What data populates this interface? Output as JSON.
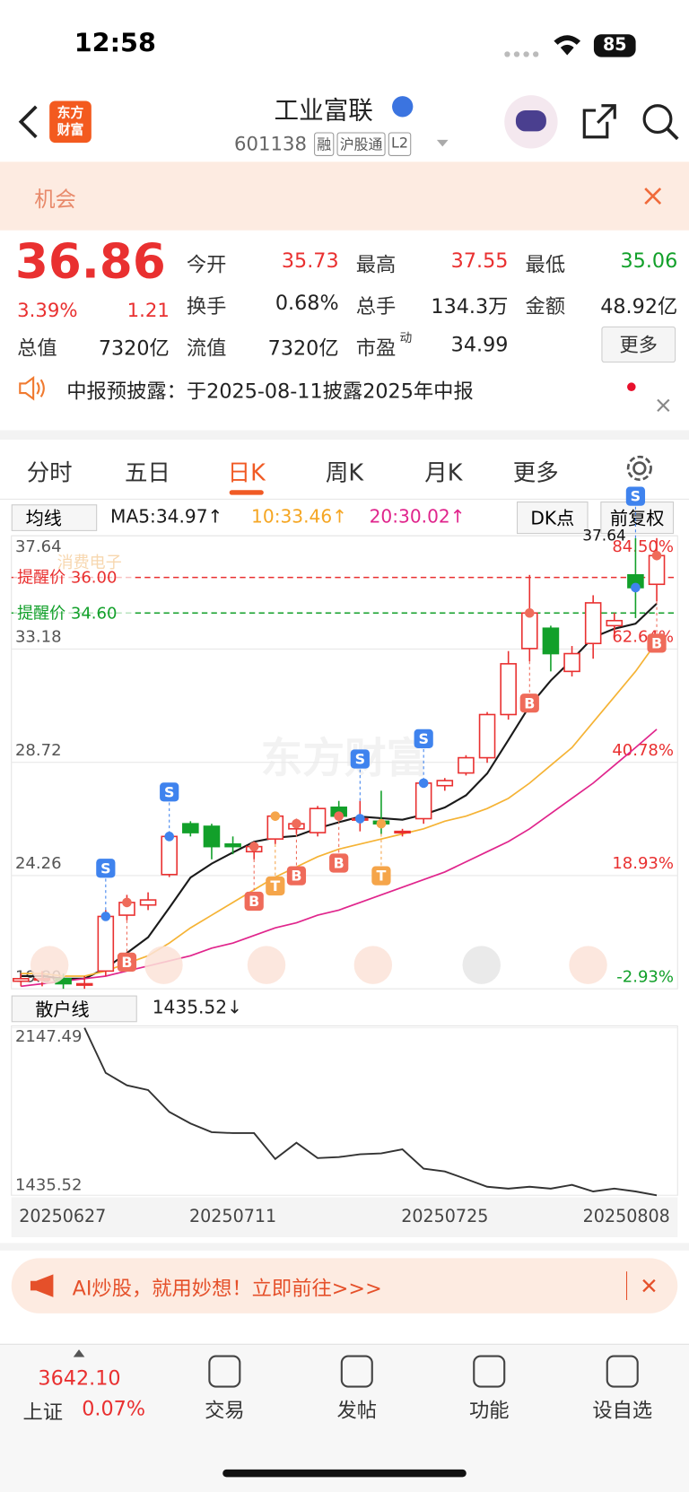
{
  "status": {
    "time": "12:58",
    "battery": "85"
  },
  "header": {
    "logo": [
      "东方",
      "财富"
    ],
    "name": "工业富联",
    "code": "601138",
    "tags": [
      "融",
      "沪股通",
      "L2"
    ]
  },
  "banner": {
    "text": "机会"
  },
  "quote": {
    "price": "36.86",
    "pct": "3.39%",
    "change": "1.21",
    "fields": [
      {
        "label": "今开",
        "value": "35.73"
      },
      {
        "label": "最高",
        "value": "37.55"
      },
      {
        "label": "最低",
        "value": "35.06"
      },
      {
        "label": "换手",
        "value": "0.68%"
      },
      {
        "label": "总手",
        "value": "134.3万"
      },
      {
        "label": "金额",
        "value": "48.92亿"
      },
      {
        "label": "总值",
        "value": "7320亿"
      },
      {
        "label": "流值",
        "value": "7320亿"
      },
      {
        "label": "市盈",
        "sup": "动",
        "value": "34.99"
      }
    ],
    "more": "更多"
  },
  "notice": "中报预披露：于2025-08-11披露2025年中报",
  "tabs": {
    "items": [
      "分时",
      "五日",
      "日K",
      "周K",
      "月K",
      "更多"
    ],
    "active": 2
  },
  "toolbar": {
    "ma": "均线",
    "ma5": "MA5:34.97↑",
    "ma10": "10:33.46↑",
    "ma20": "20:30.02↑",
    "dk": "DK点",
    "adjust": "前复权"
  },
  "chart_data": [
    {
      "type": "candlestick",
      "categories": [
        "20250627",
        null,
        null,
        null,
        null,
        null,
        null,
        null,
        null,
        null,
        "20250711",
        null,
        null,
        null,
        null,
        null,
        null,
        null,
        null,
        null,
        "20250725",
        null,
        null,
        null,
        null,
        null,
        null,
        null,
        null,
        null,
        "20250808"
      ],
      "open": [
        20.1,
        20.2,
        20.2,
        20.0,
        20.5,
        22.7,
        23.1,
        24.3,
        26.3,
        26.2,
        25.5,
        25.2,
        25.7,
        26.1,
        25.95,
        26.95,
        26.5,
        26.4,
        26.0,
        26.5,
        27.8,
        28.3,
        28.9,
        30.6,
        33.2,
        34.0,
        32.3,
        33.4,
        34.1,
        36.1,
        35.73
      ],
      "high": [
        20.4,
        20.5,
        20.4,
        20.3,
        22.9,
        23.5,
        23.6,
        25.9,
        26.4,
        26.3,
        25.8,
        25.6,
        26.7,
        26.5,
        27.0,
        27.2,
        27.2,
        27.6,
        26.1,
        28.0,
        28.1,
        29.0,
        30.7,
        33.1,
        36.1,
        34.1,
        33.3,
        35.3,
        34.6,
        37.55,
        37.55
      ],
      "low": [
        19.9,
        19.9,
        19.8,
        19.8,
        20.3,
        22.5,
        22.9,
        24.2,
        25.8,
        24.9,
        25.1,
        24.9,
        25.5,
        25.9,
        25.8,
        26.4,
        26.0,
        25.9,
        25.8,
        26.3,
        27.6,
        28.2,
        28.7,
        30.4,
        32.7,
        32.3,
        32.1,
        32.8,
        33.6,
        34.4,
        35.06
      ],
      "close": [
        20.2,
        20.2,
        20.0,
        20.0,
        22.65,
        23.2,
        23.3,
        25.8,
        25.95,
        25.4,
        25.4,
        25.4,
        26.6,
        26.3,
        26.9,
        26.6,
        26.5,
        26.3,
        26.0,
        27.9,
        28.0,
        28.9,
        30.6,
        32.6,
        34.6,
        33.0,
        33.0,
        35.0,
        34.3,
        35.6,
        36.86
      ],
      "up_color": "#e93030",
      "down_color": "#12a02a",
      "ma": [
        {
          "name": "MA5",
          "color": "#1a1a1a",
          "values": [
            20.3,
            20.3,
            20.2,
            20.2,
            20.61,
            21.21,
            21.83,
            22.99,
            24.18,
            24.73,
            25.17,
            25.59,
            25.75,
            25.82,
            26.12,
            26.36,
            26.58,
            26.52,
            26.46,
            26.66,
            26.94,
            27.42,
            28.28,
            29.6,
            30.94,
            31.94,
            32.76,
            33.64,
            33.98,
            34.18,
            34.97
          ]
        },
        {
          "name": "MA10",
          "color": "#f5b335",
          "values": [
            20.4,
            20.4,
            20.3,
            20.3,
            20.5,
            20.8,
            21.1,
            21.6,
            22.2,
            22.7,
            23.2,
            23.7,
            24.2,
            24.6,
            25.0,
            25.3,
            25.5,
            25.7,
            25.9,
            26.1,
            26.4,
            26.6,
            26.9,
            27.3,
            27.9,
            28.6,
            29.3,
            30.3,
            31.3,
            32.3,
            33.46
          ]
        },
        {
          "name": "MA20",
          "color": "#e0258c",
          "values": [
            19.9,
            20.0,
            20.1,
            20.2,
            20.3,
            20.5,
            20.7,
            20.9,
            21.1,
            21.4,
            21.6,
            21.9,
            22.2,
            22.4,
            22.7,
            22.9,
            23.2,
            23.5,
            23.8,
            24.1,
            24.4,
            24.8,
            25.2,
            25.6,
            26.1,
            26.7,
            27.3,
            27.9,
            28.6,
            29.3,
            30.02
          ]
        }
      ],
      "ylim": [
        19.8,
        37.64
      ],
      "yticks": [
        37.64,
        33.18,
        28.72,
        24.26,
        {
          "value": 19.8,
          "label": "19.80"
        }
      ],
      "pct_labels": [
        "84.50%",
        "62.64%",
        "40.78%",
        "18.93%",
        "-2.93%"
      ],
      "high_label": "37.64",
      "alerts": [
        {
          "label": "提醒价 36.00",
          "value": 36,
          "color": "#e93030"
        },
        {
          "label": "提醒价 34.60",
          "value": 34.6,
          "color": "#12a02a"
        }
      ],
      "overlay_tag": "消费电子",
      "watermark": "东方财富",
      "markers": [
        {
          "index": 4,
          "label": "S"
        },
        {
          "index": 7,
          "label": "S"
        },
        {
          "index": 16,
          "label": "S"
        },
        {
          "index": 19,
          "label": "S"
        },
        {
          "index": 29,
          "label": "S"
        },
        {
          "index": 5,
          "label": "B"
        },
        {
          "index": 11,
          "label": "B"
        },
        {
          "index": 13,
          "label": "B"
        },
        {
          "index": 15,
          "label": "B"
        },
        {
          "index": 24,
          "label": "B"
        },
        {
          "index": 30,
          "label": "B"
        },
        {
          "index": 12,
          "label": "T"
        },
        {
          "index": 17,
          "label": "T"
        }
      ]
    },
    {
      "type": "line",
      "title": "散户线",
      "value_label": "1435.52↓",
      "color": "#333333",
      "values": [
        null,
        null,
        null,
        2147.49,
        1956,
        1903,
        1883,
        1790,
        1741,
        1704,
        1700,
        1700,
        1590,
        1659,
        1594,
        1598,
        1610,
        1614,
        1631,
        1549,
        1537,
        1505,
        1472,
        1464,
        1472,
        1464,
        1480,
        1452,
        1464,
        1452,
        1435.52
      ],
      "ylim": [
        1435.52,
        2147.49
      ],
      "yticks": [
        2147.49,
        1435.52
      ]
    }
  ],
  "ad": "AI炒股，就用妙想！立即前往>>>",
  "footer": {
    "index": "3642.10",
    "index_name": "上证",
    "index_pct": "0.07%",
    "nav": [
      "交易",
      "发帖",
      "功能",
      "设自选"
    ]
  }
}
